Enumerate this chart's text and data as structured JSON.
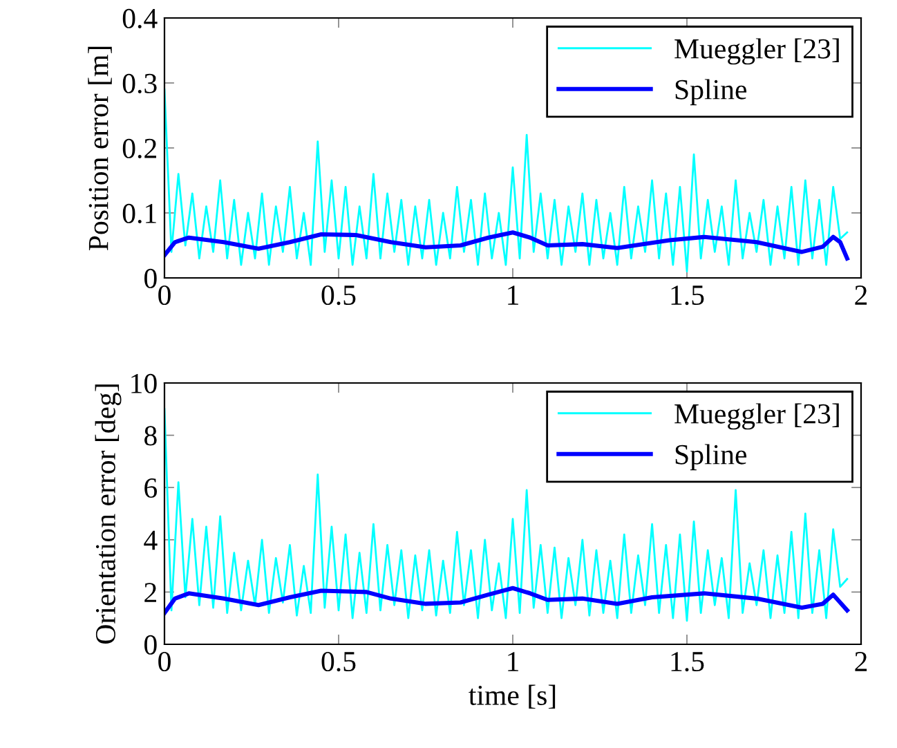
{
  "chart_data": [
    {
      "type": "line",
      "ylabel": "Position error [m]",
      "xlim": [
        0,
        2
      ],
      "ylim": [
        0,
        0.4
      ],
      "xticks": [
        0,
        0.5,
        1,
        1.5,
        2
      ],
      "yticks": [
        0,
        0.1,
        0.2,
        0.3,
        0.4
      ],
      "grid": false,
      "legend": "top right",
      "marker": "none",
      "line_style": "solid",
      "series": [
        {
          "name": "Mueggler [23]",
          "color": "#00ffff",
          "x": [
            0,
            0.02,
            0.04,
            0.06,
            0.08,
            0.1,
            0.12,
            0.14,
            0.16,
            0.18,
            0.2,
            0.22,
            0.24,
            0.26,
            0.28,
            0.3,
            0.32,
            0.34,
            0.36,
            0.38,
            0.4,
            0.42,
            0.44,
            0.46,
            0.48,
            0.5,
            0.52,
            0.54,
            0.56,
            0.58,
            0.6,
            0.62,
            0.64,
            0.66,
            0.68,
            0.7,
            0.72,
            0.74,
            0.76,
            0.78,
            0.8,
            0.82,
            0.84,
            0.86,
            0.88,
            0.9,
            0.92,
            0.94,
            0.96,
            0.98,
            1.0,
            1.02,
            1.04,
            1.06,
            1.08,
            1.1,
            1.12,
            1.14,
            1.16,
            1.18,
            1.2,
            1.22,
            1.24,
            1.26,
            1.28,
            1.3,
            1.32,
            1.34,
            1.36,
            1.38,
            1.4,
            1.42,
            1.44,
            1.46,
            1.48,
            1.5,
            1.52,
            1.54,
            1.56,
            1.58,
            1.6,
            1.62,
            1.64,
            1.66,
            1.68,
            1.7,
            1.72,
            1.74,
            1.76,
            1.78,
            1.8,
            1.82,
            1.84,
            1.86,
            1.88,
            1.9,
            1.92,
            1.94,
            1.96
          ],
          "values": [
            0.29,
            0.04,
            0.16,
            0.05,
            0.13,
            0.03,
            0.11,
            0.04,
            0.15,
            0.03,
            0.12,
            0.02,
            0.1,
            0.03,
            0.13,
            0.02,
            0.11,
            0.04,
            0.14,
            0.03,
            0.1,
            0.02,
            0.21,
            0.04,
            0.15,
            0.03,
            0.14,
            0.02,
            0.11,
            0.03,
            0.16,
            0.03,
            0.13,
            0.04,
            0.12,
            0.02,
            0.11,
            0.03,
            0.12,
            0.02,
            0.1,
            0.03,
            0.14,
            0.04,
            0.12,
            0.02,
            0.13,
            0.03,
            0.1,
            0.02,
            0.17,
            0.03,
            0.22,
            0.04,
            0.13,
            0.03,
            0.12,
            0.02,
            0.11,
            0.04,
            0.13,
            0.02,
            0.12,
            0.03,
            0.1,
            0.02,
            0.14,
            0.03,
            0.11,
            0.04,
            0.15,
            0.03,
            0.13,
            0.02,
            0.14,
            0.01,
            0.19,
            0.03,
            0.12,
            0.04,
            0.11,
            0.02,
            0.15,
            0.03,
            0.1,
            0.04,
            0.12,
            0.02,
            0.11,
            0.03,
            0.14,
            0.02,
            0.15,
            0.03,
            0.12,
            0.02,
            0.14,
            0.06,
            0.07
          ]
        },
        {
          "name": "Spline",
          "color": "#0000ff",
          "x": [
            0,
            0.03,
            0.07,
            0.17,
            0.27,
            0.36,
            0.45,
            0.55,
            0.65,
            0.75,
            0.85,
            0.93,
            1.0,
            1.05,
            1.1,
            1.2,
            1.3,
            1.45,
            1.55,
            1.7,
            1.83,
            1.89,
            1.92,
            1.94,
            1.96
          ],
          "values": [
            0.035,
            0.055,
            0.062,
            0.055,
            0.045,
            0.055,
            0.067,
            0.066,
            0.055,
            0.047,
            0.05,
            0.062,
            0.07,
            0.062,
            0.05,
            0.052,
            0.046,
            0.058,
            0.063,
            0.055,
            0.04,
            0.048,
            0.063,
            0.055,
            0.03
          ]
        }
      ]
    },
    {
      "type": "line",
      "xlabel": "time [s]",
      "ylabel": "Orientation error [deg]",
      "xlim": [
        0,
        2
      ],
      "ylim": [
        0,
        10
      ],
      "xticks": [
        0,
        0.5,
        1,
        1.5,
        2
      ],
      "yticks": [
        0,
        2,
        4,
        6,
        8,
        10
      ],
      "grid": false,
      "legend": "top right",
      "marker": "none",
      "line_style": "solid",
      "series": [
        {
          "name": "Mueggler [23]",
          "color": "#00ffff",
          "x": [
            0,
            0.02,
            0.04,
            0.06,
            0.08,
            0.1,
            0.12,
            0.14,
            0.16,
            0.18,
            0.2,
            0.22,
            0.24,
            0.26,
            0.28,
            0.3,
            0.32,
            0.34,
            0.36,
            0.38,
            0.4,
            0.42,
            0.44,
            0.46,
            0.48,
            0.5,
            0.52,
            0.54,
            0.56,
            0.58,
            0.6,
            0.62,
            0.64,
            0.66,
            0.68,
            0.7,
            0.72,
            0.74,
            0.76,
            0.78,
            0.8,
            0.82,
            0.84,
            0.86,
            0.88,
            0.9,
            0.92,
            0.94,
            0.96,
            0.98,
            1.0,
            1.02,
            1.04,
            1.06,
            1.08,
            1.1,
            1.12,
            1.14,
            1.16,
            1.18,
            1.2,
            1.22,
            1.24,
            1.26,
            1.28,
            1.3,
            1.32,
            1.34,
            1.36,
            1.38,
            1.4,
            1.42,
            1.44,
            1.46,
            1.48,
            1.5,
            1.52,
            1.54,
            1.56,
            1.58,
            1.6,
            1.62,
            1.64,
            1.66,
            1.68,
            1.7,
            1.72,
            1.74,
            1.76,
            1.78,
            1.8,
            1.82,
            1.84,
            1.86,
            1.88,
            1.9,
            1.92,
            1.94,
            1.96
          ],
          "values": [
            9.0,
            1.3,
            6.2,
            1.8,
            4.8,
            1.5,
            4.5,
            1.4,
            4.9,
            1.2,
            3.5,
            1.3,
            3.2,
            1.5,
            4.0,
            1.2,
            3.3,
            1.6,
            3.8,
            1.1,
            3.0,
            1.2,
            6.5,
            1.4,
            4.5,
            1.3,
            4.2,
            1.0,
            3.5,
            1.2,
            4.6,
            1.3,
            3.8,
            1.5,
            3.6,
            1.0,
            3.4,
            1.3,
            3.6,
            1.1,
            3.2,
            1.2,
            4.3,
            1.5,
            3.6,
            1.0,
            4.0,
            1.3,
            3.1,
            1.0,
            4.8,
            1.2,
            5.9,
            1.4,
            3.8,
            1.2,
            3.7,
            1.0,
            3.3,
            1.5,
            4.0,
            1.1,
            3.6,
            1.2,
            3.2,
            1.0,
            4.2,
            1.2,
            3.4,
            1.5,
            4.6,
            1.2,
            3.8,
            1.0,
            4.2,
            0.9,
            4.7,
            1.2,
            3.6,
            1.5,
            3.3,
            1.0,
            5.9,
            1.2,
            3.1,
            1.5,
            3.6,
            1.0,
            3.4,
            1.2,
            4.3,
            1.0,
            5.0,
            1.2,
            3.6,
            1.0,
            4.4,
            2.2,
            2.5
          ]
        },
        {
          "name": "Spline",
          "color": "#0000ff",
          "x": [
            0,
            0.03,
            0.07,
            0.17,
            0.27,
            0.36,
            0.45,
            0.58,
            0.65,
            0.75,
            0.85,
            0.93,
            1.0,
            1.05,
            1.1,
            1.2,
            1.3,
            1.4,
            1.55,
            1.7,
            1.83,
            1.89,
            1.92,
            1.94,
            1.96
          ],
          "values": [
            1.2,
            1.75,
            1.95,
            1.75,
            1.5,
            1.8,
            2.05,
            2.0,
            1.75,
            1.55,
            1.6,
            1.9,
            2.15,
            1.95,
            1.7,
            1.75,
            1.55,
            1.8,
            1.95,
            1.75,
            1.4,
            1.55,
            1.9,
            1.6,
            1.3
          ]
        }
      ]
    }
  ]
}
